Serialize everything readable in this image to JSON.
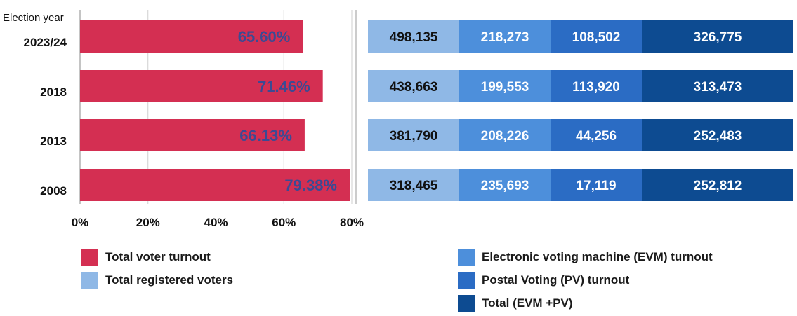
{
  "chart_data": [
    {
      "type": "bar",
      "orientation": "horizontal",
      "ylabel": "Election year",
      "categories": [
        "2023/24",
        "2018",
        "2013",
        "2008"
      ],
      "series": [
        {
          "name": "Total voter turnout",
          "values": [
            65.6,
            71.46,
            66.13,
            79.38
          ],
          "labels": [
            "65.60%",
            "71.46%",
            "66.13%",
            "79.38%"
          ],
          "color": "#d42f52"
        }
      ],
      "xlim": [
        0,
        80
      ],
      "x_ticks": [
        "0%",
        "20%",
        "40%",
        "60%",
        "80%"
      ],
      "grid": true,
      "label_color": "#3b4a93"
    },
    {
      "type": "table",
      "columns": [
        {
          "name": "Total registered voters",
          "color": "#8fb8e6",
          "text_color": "#111111"
        },
        {
          "name": "Electronic voting machine (EVM) turnout",
          "color": "#4d8fdb",
          "text_color": "#ffffff"
        },
        {
          "name": "Postal Voting (PV) turnout",
          "color": "#2b6cc4",
          "text_color": "#ffffff"
        },
        {
          "name": "Total (EVM +PV)",
          "color": "#0d4b91",
          "text_color": "#ffffff"
        }
      ],
      "rows": [
        {
          "year": "2023/24",
          "values": [
            "498,135",
            "218,273",
            "108,502",
            "326,775"
          ]
        },
        {
          "year": "2018",
          "values": [
            "438,663",
            "199,553",
            "113,920",
            "313,473"
          ]
        },
        {
          "year": "2013",
          "values": [
            "381,790",
            "208,226",
            "44,256",
            "252,483"
          ]
        },
        {
          "year": "2008",
          "values": [
            "318,465",
            "235,693",
            "17,119",
            "252,812"
          ]
        }
      ]
    }
  ],
  "legend": {
    "left": [
      {
        "label": "Total voter turnout",
        "color": "#d42f52"
      },
      {
        "label": "Total registered voters",
        "color": "#8fb8e6"
      }
    ],
    "right": [
      {
        "label": "Electronic voting machine (EVM) turnout",
        "color": "#4d8fdb"
      },
      {
        "label": "Postal Voting (PV) turnout",
        "color": "#2b6cc4"
      },
      {
        "label": "Total (EVM +PV)",
        "color": "#0d4b91"
      }
    ]
  }
}
